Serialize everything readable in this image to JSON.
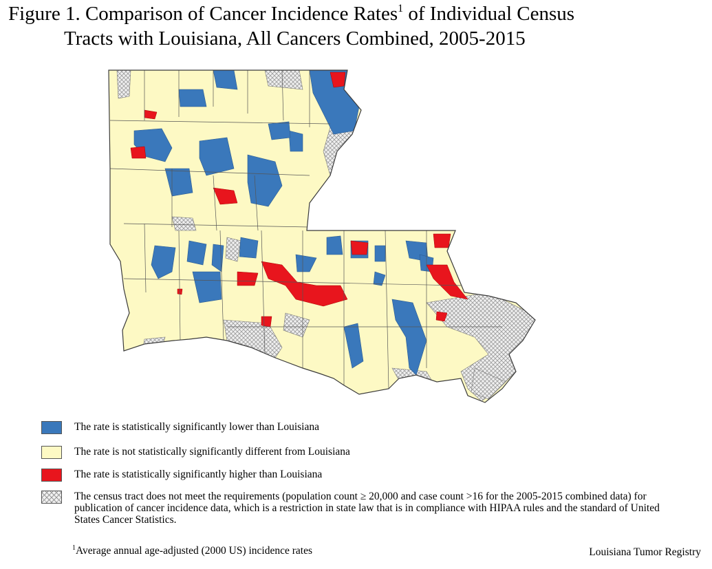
{
  "title": {
    "line1_pre": "Figure 1. Comparison of Cancer Incidence Rates",
    "footnote_marker": "1",
    "line1_post": " of Individual Census",
    "line2": "Tracts with Louisiana, All Cancers Combined, 2005-2015"
  },
  "legend": {
    "items": [
      {
        "key": "lower",
        "label": "The rate is statistically significantly lower than Louisiana",
        "color": "#3a78bb"
      },
      {
        "key": "nodiff",
        "label": "The rate is not statistically significantly different from Louisiana",
        "color": "#fdf9c4"
      },
      {
        "key": "higher",
        "label": "The rate is statistically significantly higher than Louisiana",
        "color": "#e8151d"
      },
      {
        "key": "suppressed",
        "label": "The census tract does not meet the requirements (population count ≥ 20,000 and case count >16 for the 2005-2015 combined data) for publication of cancer incidence data, which is a restriction in state law that is in compliance with HIPAA rules and the standard of United States Cancer Statistics.",
        "pattern": "crosshatch"
      }
    ]
  },
  "footnote": {
    "marker": "1",
    "text": "Average annual age-adjusted (2000 US) incidence rates"
  },
  "source": "Louisiana Tumor Registry",
  "map": {
    "region": "Louisiana census tracts",
    "outline_color": "#3a3a3a"
  }
}
